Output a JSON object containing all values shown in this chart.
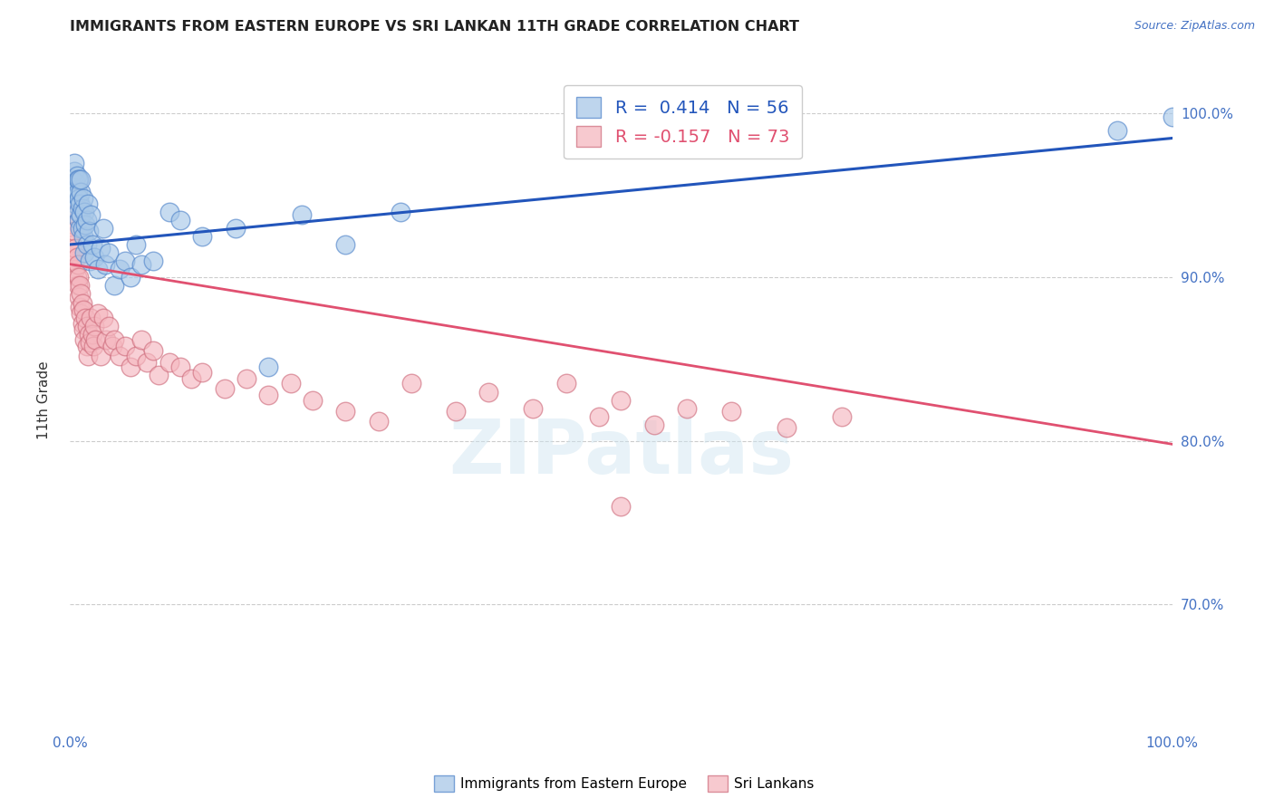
{
  "title": "IMMIGRANTS FROM EASTERN EUROPE VS SRI LANKAN 11TH GRADE CORRELATION CHART",
  "source": "Source: ZipAtlas.com",
  "ylabel": "11th Grade",
  "xlim": [
    0.0,
    1.0
  ],
  "ylim": [
    0.625,
    1.025
  ],
  "blue_color": "#a8c8e8",
  "pink_color": "#f5b8c0",
  "blue_line_color": "#2255bb",
  "pink_line_color": "#e05070",
  "blue_trend_x": [
    0.0,
    1.0
  ],
  "blue_trend_y": [
    0.92,
    0.985
  ],
  "pink_trend_x": [
    0.0,
    1.0
  ],
  "pink_trend_y": [
    0.908,
    0.798
  ],
  "blue_scatter_x": [
    0.002,
    0.003,
    0.004,
    0.004,
    0.005,
    0.005,
    0.006,
    0.006,
    0.007,
    0.007,
    0.007,
    0.008,
    0.008,
    0.008,
    0.009,
    0.009,
    0.01,
    0.01,
    0.01,
    0.011,
    0.011,
    0.012,
    0.012,
    0.013,
    0.013,
    0.014,
    0.015,
    0.015,
    0.016,
    0.017,
    0.018,
    0.019,
    0.02,
    0.022,
    0.025,
    0.028,
    0.03,
    0.032,
    0.035,
    0.04,
    0.045,
    0.05,
    0.055,
    0.06,
    0.065,
    0.075,
    0.09,
    0.1,
    0.12,
    0.15,
    0.18,
    0.21,
    0.25,
    0.3,
    0.95,
    1.0
  ],
  "blue_scatter_y": [
    0.96,
    0.955,
    0.965,
    0.97,
    0.945,
    0.958,
    0.95,
    0.962,
    0.94,
    0.952,
    0.96,
    0.935,
    0.948,
    0.96,
    0.93,
    0.945,
    0.938,
    0.952,
    0.96,
    0.942,
    0.93,
    0.948,
    0.925,
    0.94,
    0.915,
    0.932,
    0.92,
    0.935,
    0.945,
    0.928,
    0.91,
    0.938,
    0.92,
    0.912,
    0.905,
    0.918,
    0.93,
    0.908,
    0.915,
    0.895,
    0.905,
    0.91,
    0.9,
    0.92,
    0.908,
    0.91,
    0.94,
    0.935,
    0.925,
    0.93,
    0.845,
    0.938,
    0.92,
    0.94,
    0.99,
    0.998
  ],
  "pink_scatter_x": [
    0.001,
    0.002,
    0.003,
    0.003,
    0.004,
    0.004,
    0.005,
    0.005,
    0.006,
    0.006,
    0.007,
    0.007,
    0.008,
    0.008,
    0.009,
    0.009,
    0.01,
    0.01,
    0.011,
    0.011,
    0.012,
    0.012,
    0.013,
    0.014,
    0.015,
    0.015,
    0.016,
    0.017,
    0.018,
    0.019,
    0.02,
    0.021,
    0.022,
    0.023,
    0.025,
    0.028,
    0.03,
    0.033,
    0.035,
    0.038,
    0.04,
    0.045,
    0.05,
    0.055,
    0.06,
    0.065,
    0.07,
    0.075,
    0.08,
    0.09,
    0.1,
    0.11,
    0.12,
    0.14,
    0.16,
    0.18,
    0.2,
    0.22,
    0.25,
    0.28,
    0.31,
    0.35,
    0.38,
    0.42,
    0.45,
    0.48,
    0.5,
    0.53,
    0.56,
    0.6,
    0.65,
    0.7,
    0.5
  ],
  "pink_scatter_y": [
    0.938,
    0.92,
    0.932,
    0.91,
    0.928,
    0.915,
    0.905,
    0.918,
    0.9,
    0.912,
    0.895,
    0.908,
    0.888,
    0.9,
    0.882,
    0.895,
    0.878,
    0.89,
    0.872,
    0.884,
    0.868,
    0.88,
    0.862,
    0.875,
    0.858,
    0.87,
    0.852,
    0.865,
    0.86,
    0.875,
    0.865,
    0.858,
    0.87,
    0.862,
    0.878,
    0.852,
    0.875,
    0.862,
    0.87,
    0.858,
    0.862,
    0.852,
    0.858,
    0.845,
    0.852,
    0.862,
    0.848,
    0.855,
    0.84,
    0.848,
    0.845,
    0.838,
    0.842,
    0.832,
    0.838,
    0.828,
    0.835,
    0.825,
    0.818,
    0.812,
    0.835,
    0.818,
    0.83,
    0.82,
    0.835,
    0.815,
    0.825,
    0.81,
    0.82,
    0.818,
    0.808,
    0.815,
    0.76
  ]
}
